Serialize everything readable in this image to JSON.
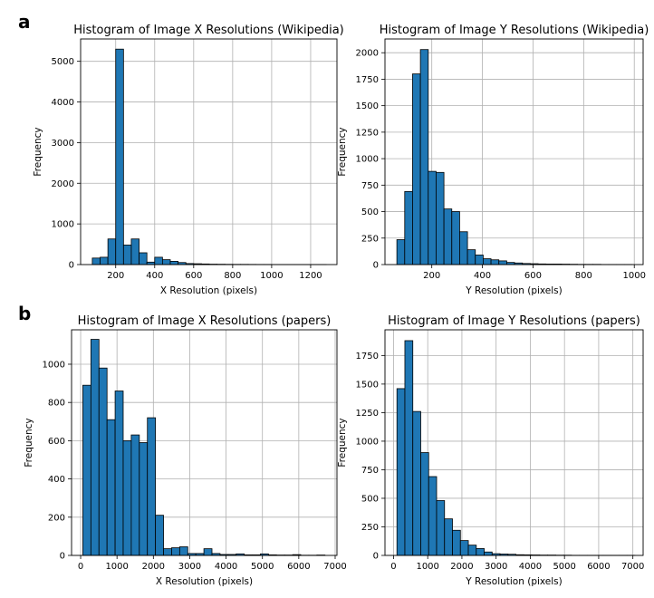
{
  "panel_labels": [
    "a",
    "b"
  ],
  "chart_data": [
    {
      "type": "bar",
      "title": "Histogram of Image X Resolutions (Wikipedia)",
      "xlabel": "X Resolution (pixels)",
      "ylabel": "Frequency",
      "xlim": [
        20,
        1335
      ],
      "ylim": [
        0,
        5550
      ],
      "xticks": [
        200,
        400,
        600,
        800,
        1000,
        1200
      ],
      "yticks": [
        0,
        1000,
        2000,
        3000,
        4000,
        5000
      ],
      "grid": true,
      "bin_start": 80,
      "bin_width": 40,
      "values": [
        160,
        180,
        630,
        5300,
        480,
        630,
        290,
        60,
        180,
        120,
        80,
        50,
        25,
        20,
        15,
        10,
        8,
        6,
        5,
        5,
        4,
        3,
        3,
        2,
        2,
        2,
        1,
        1,
        1,
        1
      ],
      "bar_color": "#1f77b4"
    },
    {
      "type": "bar",
      "title": "Histogram of Image Y Resolutions (Wikipedia)",
      "xlabel": "Y Resolution (pixels)",
      "ylabel": "Frequency",
      "xlim": [
        15,
        1035
      ],
      "ylim": [
        0,
        2130
      ],
      "xticks": [
        200,
        400,
        600,
        800,
        1000
      ],
      "yticks": [
        0,
        250,
        500,
        750,
        1000,
        1250,
        1500,
        1750,
        2000
      ],
      "grid": true,
      "bin_start": 62,
      "bin_width": 31,
      "values": [
        235,
        690,
        1800,
        2030,
        880,
        870,
        525,
        500,
        310,
        140,
        90,
        55,
        45,
        35,
        20,
        15,
        10,
        8,
        6,
        5,
        5,
        4,
        3,
        2,
        2,
        2,
        1,
        1,
        1,
        1
      ],
      "bar_color": "#1f77b4"
    },
    {
      "type": "bar",
      "title": "Histogram of Image X Resolutions (papers)",
      "xlabel": "X Resolution (pixels)",
      "ylabel": "Frequency",
      "xlim": [
        -250,
        7050
      ],
      "ylim": [
        0,
        1180
      ],
      "xticks": [
        0,
        1000,
        2000,
        3000,
        4000,
        5000,
        6000,
        7000
      ],
      "yticks": [
        0,
        200,
        400,
        600,
        800,
        1000
      ],
      "grid": true,
      "bin_start": 60,
      "bin_width": 222,
      "values": [
        890,
        1130,
        980,
        710,
        860,
        600,
        630,
        590,
        720,
        210,
        35,
        40,
        45,
        10,
        10,
        35,
        10,
        5,
        5,
        8,
        3,
        3,
        8,
        3,
        2,
        2,
        4,
        1,
        1,
        2
      ],
      "bar_color": "#1f77b4"
    },
    {
      "type": "bar",
      "title": "Histogram of Image Y Resolutions (papers)",
      "xlabel": "Y Resolution (pixels)",
      "ylabel": "Frequency",
      "xlim": [
        -250,
        7300
      ],
      "ylim": [
        0,
        1975
      ],
      "xticks": [
        0,
        1000,
        2000,
        3000,
        4000,
        5000,
        6000,
        7000
      ],
      "yticks": [
        0,
        250,
        500,
        750,
        1000,
        1250,
        1500,
        1750
      ],
      "grid": true,
      "bin_start": 100,
      "bin_width": 232,
      "values": [
        1460,
        1880,
        1260,
        900,
        690,
        480,
        320,
        220,
        130,
        90,
        60,
        30,
        15,
        12,
        10,
        6,
        5,
        4,
        3,
        3,
        2,
        2,
        1,
        1,
        1,
        1,
        1,
        1,
        1,
        1
      ],
      "bar_color": "#1f77b4"
    }
  ]
}
